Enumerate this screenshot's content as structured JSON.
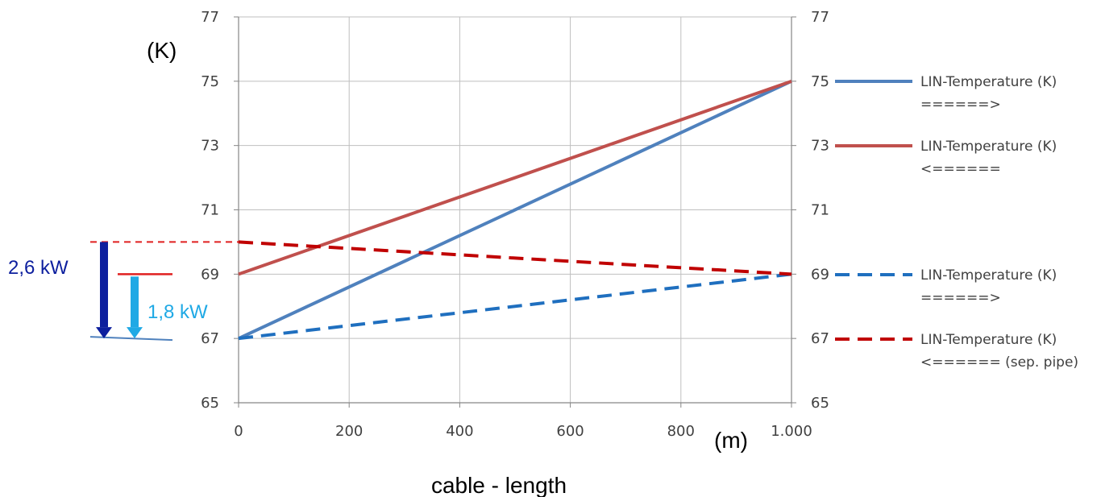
{
  "chart_data": {
    "type": "line",
    "xlabel": "cable - length",
    "x_unit_label": "(m)",
    "y_unit_label": "(K)",
    "xlim": [
      0,
      1000
    ],
    "ylim": [
      65,
      77
    ],
    "x_ticks": [
      "0",
      "200",
      "400",
      "600",
      "800",
      "1.000"
    ],
    "y_ticks": [
      "65",
      "67",
      "69",
      "71",
      "73",
      "75",
      "77"
    ],
    "y_ticks_right": [
      "65",
      "67",
      "69",
      "71",
      "73",
      "75",
      "77"
    ],
    "grid": true,
    "legend_position": "right",
    "series": [
      {
        "name_line1": "LIN-Temperature (K)",
        "name_line2": "======>",
        "color": "#4f81bd",
        "dash": "solid",
        "x": [
          0,
          1000
        ],
        "y": [
          67,
          75
        ]
      },
      {
        "name_line1": "LIN-Temperature (K)",
        "name_line2": "<======",
        "color": "#c0504d",
        "dash": "solid",
        "x": [
          0,
          1000
        ],
        "y": [
          69,
          75
        ]
      },
      {
        "name_line1": "LIN-Temperature (K)",
        "name_line2": "======>",
        "color": "#1f6fbf",
        "dash": "dashed",
        "x": [
          0,
          1000
        ],
        "y": [
          67,
          69
        ]
      },
      {
        "name_line1": "LIN-Temperature (K)",
        "name_line2": "<====== (sep. pipe)",
        "color": "#c00000",
        "dash": "dashed",
        "x": [
          0,
          1000
        ],
        "y": [
          70,
          69
        ]
      }
    ],
    "annotations": {
      "dark": {
        "label": "2,6 kW",
        "color": "#0d1f9e",
        "from_y": 70,
        "to_y": 67
      },
      "light": {
        "label": "1,8 kW",
        "color": "#1fa9e5",
        "from_y": 69,
        "to_y": 67
      }
    }
  }
}
